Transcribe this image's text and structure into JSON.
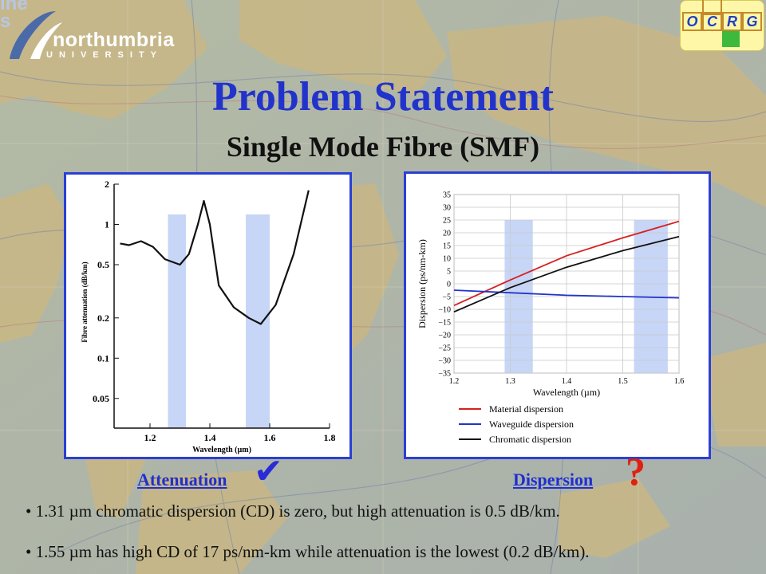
{
  "slide": {
    "title": "Problem Statement",
    "subtitle": "Single Mode Fibre (SMF)",
    "corner_fragment": "ine\ns"
  },
  "logos": {
    "northumbria_name": "northumbria",
    "northumbria_univ": "UNIVERSITY",
    "ocrg_letters": [
      "O",
      "C",
      "R",
      "G"
    ]
  },
  "attenuation_chart": {
    "chart_data": {
      "type": "line",
      "xlabel": "Wavelength (µm)",
      "ylabel": "Fibre attenuation (dB/km)",
      "x_ticks": [
        "1.2",
        "1.4",
        "1.6",
        "1.8"
      ],
      "y_ticks": [
        "2",
        "1",
        "0.5",
        "0.2",
        "0.1",
        "0.05"
      ],
      "y_scale": "log",
      "xlim": [
        1.08,
        1.8
      ],
      "ylim": [
        0.03,
        2
      ],
      "series": [
        {
          "x": [
            1.1,
            1.13,
            1.17,
            1.21,
            1.25,
            1.3,
            1.33,
            1.36,
            1.38,
            1.4,
            1.43,
            1.48,
            1.53,
            1.57,
            1.62,
            1.68,
            1.73
          ],
          "y": [
            0.72,
            0.7,
            0.75,
            0.68,
            0.55,
            0.5,
            0.6,
            1.0,
            1.5,
            1.0,
            0.35,
            0.24,
            0.2,
            0.18,
            0.25,
            0.6,
            1.8
          ]
        }
      ],
      "highlight_bands": [
        [
          1.26,
          1.32
        ],
        [
          1.52,
          1.6
        ]
      ]
    }
  },
  "dispersion_chart": {
    "chart_data": {
      "type": "line",
      "xlabel": "Wavelength (µm)",
      "ylabel": "Dispersion (ps/nm-km)",
      "x_ticks": [
        "1.2",
        "1.3",
        "1.4",
        "1.5",
        "1.6"
      ],
      "y_ticks": [
        "35",
        "30",
        "25",
        "20",
        "15",
        "10",
        "5",
        "0",
        "−5",
        "−10",
        "−15",
        "−20",
        "−25",
        "−30",
        "−35"
      ],
      "xlim": [
        1.2,
        1.6
      ],
      "ylim": [
        -35,
        35
      ],
      "grid": true,
      "series": [
        {
          "name": "Material dispersion",
          "color": "#d42020",
          "x": [
            1.2,
            1.3,
            1.4,
            1.5,
            1.6
          ],
          "y": [
            -8.5,
            1.5,
            11,
            18,
            24.5
          ]
        },
        {
          "name": "Waveguide dispersion",
          "color": "#2233cc",
          "x": [
            1.2,
            1.3,
            1.4,
            1.5,
            1.6
          ],
          "y": [
            -2.5,
            -3.5,
            -4.5,
            -5,
            -5.5
          ]
        },
        {
          "name": "Chromatic dispersion",
          "color": "#111111",
          "x": [
            1.2,
            1.3,
            1.4,
            1.5,
            1.6
          ],
          "y": [
            -11,
            -1.5,
            6.5,
            13,
            18.5
          ]
        }
      ],
      "highlight_bands": [
        [
          1.29,
          1.34
        ],
        [
          1.52,
          1.58
        ]
      ],
      "legend": "bottom"
    }
  },
  "labels": {
    "attenuation": "Attenuation",
    "check_mark": "✔",
    "dispersion": "Dispersion",
    "question_mark": "?"
  },
  "bullets": [
    "• 1.31 µm chromatic dispersion (CD) is zero, but high attenuation is 0.5 dB/km.",
    "• 1.55 µm has high CD of 17 ps/nm-km while attenuation is the lowest (0.2 dB/km)."
  ],
  "colors": {
    "title": "#2233cc",
    "panel_border": "#2b3fd6",
    "band": "#c7d6f6",
    "check": "#2a2ad8",
    "question": "#e02010"
  }
}
